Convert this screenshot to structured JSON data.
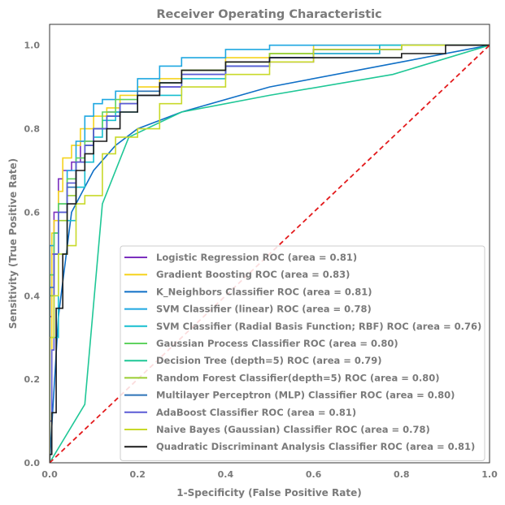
{
  "chart_data": {
    "type": "line",
    "title": "Receiver Operating Characteristic",
    "xlabel": "1-Specificity (False Positive Rate)",
    "ylabel": "Sensitivity (True Positive Rate)",
    "xlim": [
      0,
      1
    ],
    "ylim": [
      0,
      1.05
    ],
    "xticks": [
      0.0,
      0.2,
      0.4,
      0.6,
      0.8,
      1.0
    ],
    "yticks": [
      0.0,
      0.2,
      0.4,
      0.6,
      0.8,
      1.0
    ],
    "xtick_labels": [
      "0.0",
      "0.2",
      "0.4",
      "0.6",
      "0.8",
      "1.0"
    ],
    "ytick_labels": [
      "0.0",
      "0.2",
      "0.4",
      "0.6",
      "0.8",
      "1.0"
    ],
    "grid": false,
    "legend_position": "lower-right",
    "reference_line": {
      "x": [
        0,
        1
      ],
      "y": [
        0,
        1
      ],
      "color": "#e31a1c",
      "style": "dashed"
    },
    "series": [
      {
        "name": "Logistic Regression ROC (area = 0.81)",
        "color": "#7b2fbe",
        "step": true,
        "x": [
          0,
          0.005,
          0.01,
          0.02,
          0.03,
          0.05,
          0.07,
          0.1,
          0.13,
          0.16,
          0.2,
          0.25,
          0.3,
          0.4,
          0.5,
          0.6,
          0.75,
          0.9,
          1.0
        ],
        "y": [
          0,
          0.35,
          0.5,
          0.6,
          0.68,
          0.7,
          0.72,
          0.77,
          0.8,
          0.84,
          0.86,
          0.88,
          0.9,
          0.93,
          0.95,
          0.96,
          0.98,
          1.0,
          1.0
        ]
      },
      {
        "name": "Gradient Boosting ROC (area = 0.83)",
        "color": "#f5d31d",
        "step": true,
        "x": [
          0,
          0.005,
          0.01,
          0.02,
          0.03,
          0.05,
          0.07,
          0.1,
          0.13,
          0.16,
          0.2,
          0.25,
          0.3,
          0.4,
          0.5,
          0.6,
          0.7,
          0.8,
          0.9,
          1.0
        ],
        "y": [
          0,
          0.1,
          0.55,
          0.58,
          0.65,
          0.73,
          0.76,
          0.8,
          0.83,
          0.85,
          0.88,
          0.9,
          0.92,
          0.94,
          0.97,
          0.98,
          1.0,
          1.0,
          1.0,
          1.0
        ]
      },
      {
        "name": "K_Neighbors Classifier ROC (area = 0.81)",
        "color": "#0f6fc6",
        "step": false,
        "x": [
          0,
          0.02,
          0.05,
          0.1,
          0.15,
          0.2,
          0.3,
          0.5,
          0.8,
          1.0
        ],
        "y": [
          0,
          0.35,
          0.6,
          0.7,
          0.76,
          0.8,
          0.84,
          0.9,
          0.96,
          1.0
        ]
      },
      {
        "name": "SVM Classifier (linear) ROC (area = 0.78)",
        "color": "#1ea7e1",
        "step": true,
        "x": [
          0,
          0.01,
          0.02,
          0.04,
          0.06,
          0.08,
          0.1,
          0.12,
          0.15,
          0.2,
          0.25,
          0.3,
          0.4,
          0.5,
          0.6,
          0.7,
          0.8,
          1.0
        ],
        "y": [
          0,
          0.52,
          0.55,
          0.62,
          0.7,
          0.77,
          0.83,
          0.86,
          0.87,
          0.89,
          0.92,
          0.95,
          0.97,
          0.99,
          1.0,
          1.0,
          1.0,
          1.0
        ]
      },
      {
        "name": "SVM Classifier (Radial Basis Function; RBF) ROC (area = 0.76)",
        "color": "#17becf",
        "step": true,
        "x": [
          0,
          0.02,
          0.04,
          0.06,
          0.08,
          0.1,
          0.12,
          0.15,
          0.2,
          0.3,
          0.4,
          0.5,
          0.6,
          0.75,
          0.9,
          1.0
        ],
        "y": [
          0,
          0.3,
          0.5,
          0.58,
          0.66,
          0.72,
          0.78,
          0.82,
          0.84,
          0.88,
          0.92,
          0.95,
          0.97,
          0.98,
          1.0,
          1.0
        ]
      },
      {
        "name": "Gaussian Process Classifier ROC (area = 0.80)",
        "color": "#5fd35f",
        "step": true,
        "x": [
          0,
          0.01,
          0.02,
          0.04,
          0.06,
          0.08,
          0.1,
          0.12,
          0.15,
          0.2,
          0.25,
          0.3,
          0.4,
          0.5,
          0.6,
          0.8,
          1.0
        ],
        "y": [
          0,
          0.45,
          0.55,
          0.62,
          0.68,
          0.73,
          0.77,
          0.8,
          0.84,
          0.87,
          0.89,
          0.91,
          0.94,
          0.96,
          0.98,
          0.99,
          1.0
        ]
      },
      {
        "name": "Decision Tree (depth=5) ROC (area = 0.79)",
        "color": "#1fc796",
        "step": false,
        "x": [
          0,
          0.08,
          0.12,
          0.18,
          0.3,
          0.5,
          0.78,
          1.0
        ],
        "y": [
          0,
          0.14,
          0.62,
          0.78,
          0.84,
          0.88,
          0.93,
          1.0
        ]
      },
      {
        "name": "Random Forest Classifier(depth=5) ROC (area = 0.80)",
        "color": "#9acd32",
        "step": true,
        "x": [
          0,
          0.01,
          0.02,
          0.04,
          0.06,
          0.08,
          0.1,
          0.13,
          0.16,
          0.2,
          0.25,
          0.3,
          0.4,
          0.5,
          0.6,
          0.8,
          1.0
        ],
        "y": [
          0,
          0.4,
          0.5,
          0.58,
          0.64,
          0.72,
          0.76,
          0.8,
          0.83,
          0.86,
          0.88,
          0.91,
          0.94,
          0.96,
          0.98,
          0.99,
          1.0
        ]
      },
      {
        "name": "Multilayer Perceptron (MLP) Classifier ROC (area = 0.80)",
        "color": "#2c73b8",
        "step": true,
        "x": [
          0,
          0.01,
          0.02,
          0.04,
          0.06,
          0.08,
          0.1,
          0.13,
          0.16,
          0.2,
          0.25,
          0.3,
          0.4,
          0.5,
          0.6,
          0.8,
          1.0
        ],
        "y": [
          0,
          0.42,
          0.5,
          0.6,
          0.66,
          0.72,
          0.76,
          0.8,
          0.83,
          0.86,
          0.89,
          0.91,
          0.93,
          0.95,
          0.97,
          0.99,
          1.0
        ]
      },
      {
        "name": "AdaBoost Classifier ROC (area = 0.81)",
        "color": "#5b5bd6",
        "step": true,
        "x": [
          0,
          0.005,
          0.01,
          0.02,
          0.04,
          0.06,
          0.08,
          0.1,
          0.13,
          0.16,
          0.2,
          0.25,
          0.3,
          0.4,
          0.5,
          0.6,
          0.8,
          0.9,
          1.0
        ],
        "y": [
          0,
          0.1,
          0.27,
          0.5,
          0.6,
          0.67,
          0.72,
          0.76,
          0.8,
          0.83,
          0.86,
          0.88,
          0.9,
          0.93,
          0.95,
          0.97,
          0.99,
          1.0,
          1.0
        ]
      },
      {
        "name": "Naive Bayes (Gaussian) Classifier ROC (area = 0.78)",
        "color": "#c8d92a",
        "step": true,
        "x": [
          0,
          0.01,
          0.02,
          0.04,
          0.06,
          0.08,
          0.1,
          0.12,
          0.15,
          0.2,
          0.25,
          0.3,
          0.4,
          0.5,
          0.6,
          0.8,
          1.0
        ],
        "y": [
          0,
          0.3,
          0.4,
          0.5,
          0.52,
          0.62,
          0.64,
          0.64,
          0.74,
          0.78,
          0.8,
          0.86,
          0.9,
          0.93,
          0.96,
          0.99,
          1.0
        ]
      },
      {
        "name": "Quadratic Discriminant Analysis Classifier ROC (area = 0.81)",
        "color": "#1a1a1a",
        "step": true,
        "x": [
          0,
          0.005,
          0.015,
          0.03,
          0.04,
          0.06,
          0.08,
          0.1,
          0.13,
          0.16,
          0.2,
          0.25,
          0.3,
          0.4,
          0.5,
          0.6,
          0.7,
          0.8,
          0.9,
          1.0
        ],
        "y": [
          0,
          0.02,
          0.12,
          0.37,
          0.5,
          0.62,
          0.7,
          0.74,
          0.77,
          0.8,
          0.84,
          0.88,
          0.91,
          0.94,
          0.96,
          0.97,
          0.97,
          0.97,
          0.98,
          1.0
        ]
      }
    ]
  }
}
